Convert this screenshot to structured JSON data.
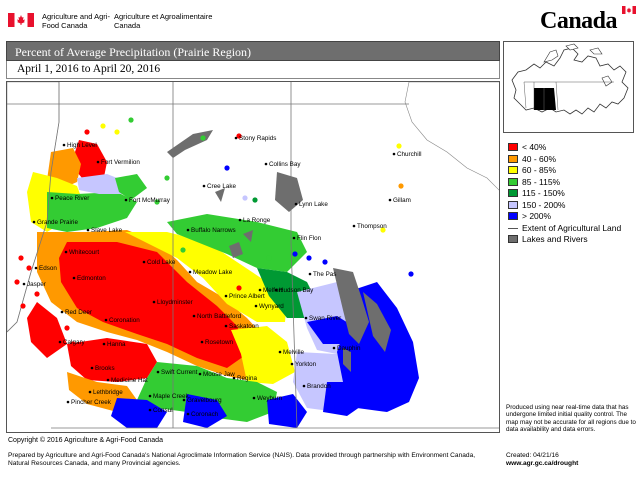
{
  "header": {
    "dept_en": "Agriculture and Agri-Food Canada",
    "dept_fr": "Agriculture et Agroalimentaire Canada",
    "wordmark": "Canada"
  },
  "title": "Percent of Average Precipitation (Prairie Region)",
  "period": "April 1, 2016 to April 20, 2016",
  "legend": [
    {
      "label": "< 40%",
      "color": "#ff0000"
    },
    {
      "label": "40 - 60%",
      "color": "#ff9900"
    },
    {
      "label": "60 - 85%",
      "color": "#ffff00"
    },
    {
      "label": "85 - 115%",
      "color": "#33cc33"
    },
    {
      "label": "115 - 150%",
      "color": "#009933"
    },
    {
      "label": "150 - 200%",
      "color": "#c6c6ff"
    },
    {
      "label": "> 200%",
      "color": "#0000ff"
    }
  ],
  "legend_extra": {
    "ag_land": "Extent of Agricultural Land",
    "lakes": "Lakes and Rivers",
    "lakes_color": "#6e6e6e"
  },
  "cities": [
    "High Level",
    "Fort Vermilion",
    "Peace River",
    "Grande Prairie",
    "Fort McMurray",
    "Slave Lake",
    "Whitecourt",
    "Edson",
    "Jasper",
    "Edmonton",
    "Red Deer",
    "Coronation",
    "Hanna",
    "Calgary",
    "Brooks",
    "Medicine Hat",
    "Lethbridge",
    "Pincher Creek",
    "Stony Rapids",
    "Collins Bay",
    "Cree Lake",
    "Buffalo Narrows",
    "La Ronge",
    "Cold Lake",
    "Meadow Lake",
    "Lloydminster",
    "North Battleford",
    "Prince Albert",
    "Saskatoon",
    "Rosetown",
    "Wynyard",
    "Hudson Bay",
    "Melfort",
    "Swift Current",
    "Moose Jaw",
    "Regina",
    "Maple Creek",
    "Gravelbourg",
    "Consul",
    "Coronach",
    "Weyburn",
    "Melville",
    "Yorkton",
    "Lynn Lake",
    "Flin Flon",
    "The Pas",
    "Swan River",
    "Dauphin",
    "Brandon",
    "Churchill",
    "Gillam",
    "Thompson"
  ],
  "disclaimer": "Produced using near real-time data that has undergone limited initial quality control. The map may not be accurate for all regions due to data availability and data errors.",
  "copyright": "Copyright © 2016 Agriculture & Agri-Food Canada",
  "prepared": "Prepared by Agriculture and Agri-Food Canada's National Agroclimate Information Service (NAIS).  Data provided through partnership with Environment Canada, Natural Resources Canada, and many Provincial agencies.",
  "created": "Created: 04/21/16",
  "url": "www.agr.gc.ca/drought"
}
